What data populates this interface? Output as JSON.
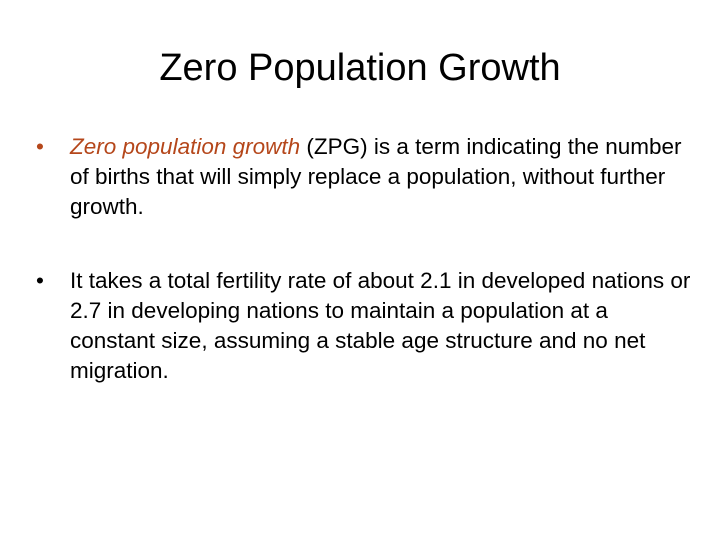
{
  "slide": {
    "title": "Zero Population Growth",
    "bullet_char": "•",
    "accent_color": "#B5471B",
    "bullets": [
      {
        "term": "Zero population growth",
        "text": " (ZPG) is a term indicating the number of births that will simply replace a population, without further growth."
      },
      {
        "text": "It takes a total fertility rate of about 2.1 in developed nations or 2.7 in developing nations to maintain a population at a constant size, assuming a stable age structure and no net migration."
      }
    ]
  }
}
